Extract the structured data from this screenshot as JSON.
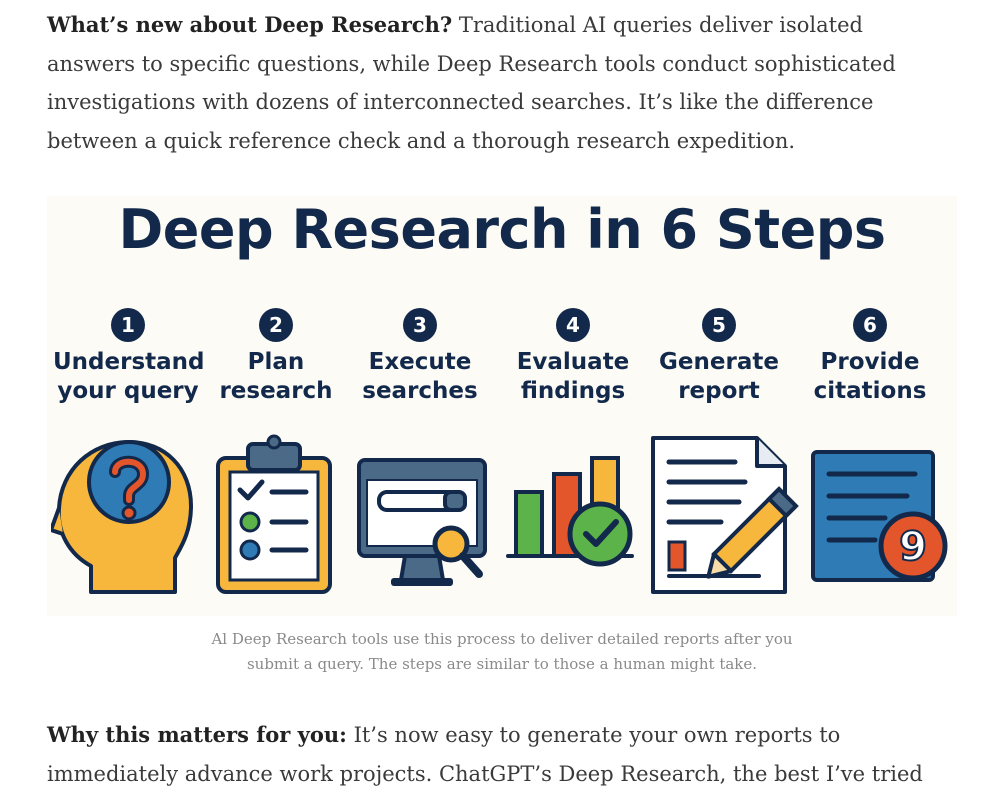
{
  "intro": {
    "lead": "What’s new about Deep Research?",
    "text": " Traditional AI queries deliver isolated answers to specific questions, while Deep Research tools conduct sophisticated investigations with dozens of interconnected searches. It’s like the difference between a quick reference check and a thorough research expedition."
  },
  "figure": {
    "title": "Deep Research in 6 Steps",
    "steps": [
      {
        "num": "1",
        "line1": "Understand",
        "line2": "your query",
        "icon": "head-question-icon"
      },
      {
        "num": "2",
        "line1": "Plan",
        "line2": "research",
        "icon": "clipboard-checklist-icon"
      },
      {
        "num": "3",
        "line1": "Execute",
        "line2": "searches",
        "icon": "monitor-search-icon"
      },
      {
        "num": "4",
        "line1": "Evaluate",
        "line2": "findings",
        "icon": "bar-chart-check-icon"
      },
      {
        "num": "5",
        "line1": "Generate",
        "line2": "report",
        "icon": "document-pencil-icon"
      },
      {
        "num": "6",
        "line1": "Provide",
        "line2": "citations",
        "icon": "citation-document-icon"
      }
    ],
    "citation_glyph": "9",
    "colors": {
      "navy": "#13294b",
      "yellow": "#f6b73c",
      "blue": "#2e7bb6",
      "orange": "#e3562b",
      "green": "#5cb34a"
    }
  },
  "caption": {
    "line1": "Al Deep Research tools use this process to deliver detailed reports after you",
    "line2": "submit a query. The steps are similar to those a human might take."
  },
  "closing": {
    "lead": "Why this matters for you:",
    "text": " It’s now easy to generate your own reports to immediately advance work projects. ChatGPT’s Deep Research, the best I’ve tried"
  }
}
